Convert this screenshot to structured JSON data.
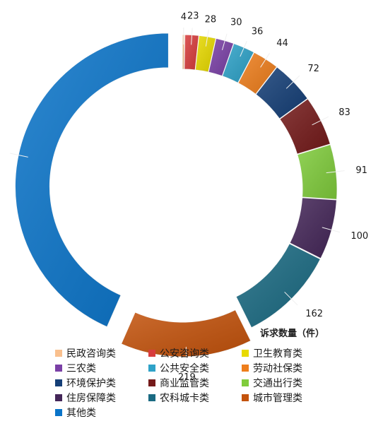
{
  "chart_data": {
    "type": "pie",
    "variant": "exploded-donut",
    "series_title": "诉求数量（件）",
    "legend_position": "bottom",
    "slices": [
      {
        "label": "民政咨询类",
        "value": 4,
        "color": "#F9C08E"
      },
      {
        "label": "公安咨询类",
        "value": 23,
        "color": "#D83C3C"
      },
      {
        "label": "卫生教育类",
        "value": 28,
        "color": "#E8DA00"
      },
      {
        "label": "三农类",
        "value": 30,
        "color": "#7A40A6"
      },
      {
        "label": "公共安全类",
        "value": 36,
        "color": "#2EA2C8"
      },
      {
        "label": "劳动社保类",
        "value": 44,
        "color": "#EE7E1C"
      },
      {
        "label": "环境保护类",
        "value": 72,
        "color": "#153F77"
      },
      {
        "label": "商业监管类",
        "value": 83,
        "color": "#741A1A"
      },
      {
        "label": "交通出行类",
        "value": 91,
        "color": "#80CC3C"
      },
      {
        "label": "住房保障类",
        "value": 100,
        "color": "#442658"
      },
      {
        "label": "农科城卡类",
        "value": 162,
        "color": "#1A6A82"
      },
      {
        "label": "城市管理类",
        "value": 219,
        "color": "#C4530C"
      },
      {
        "label": "其他类",
        "value": 685,
        "color": "#0A74C9"
      }
    ]
  }
}
